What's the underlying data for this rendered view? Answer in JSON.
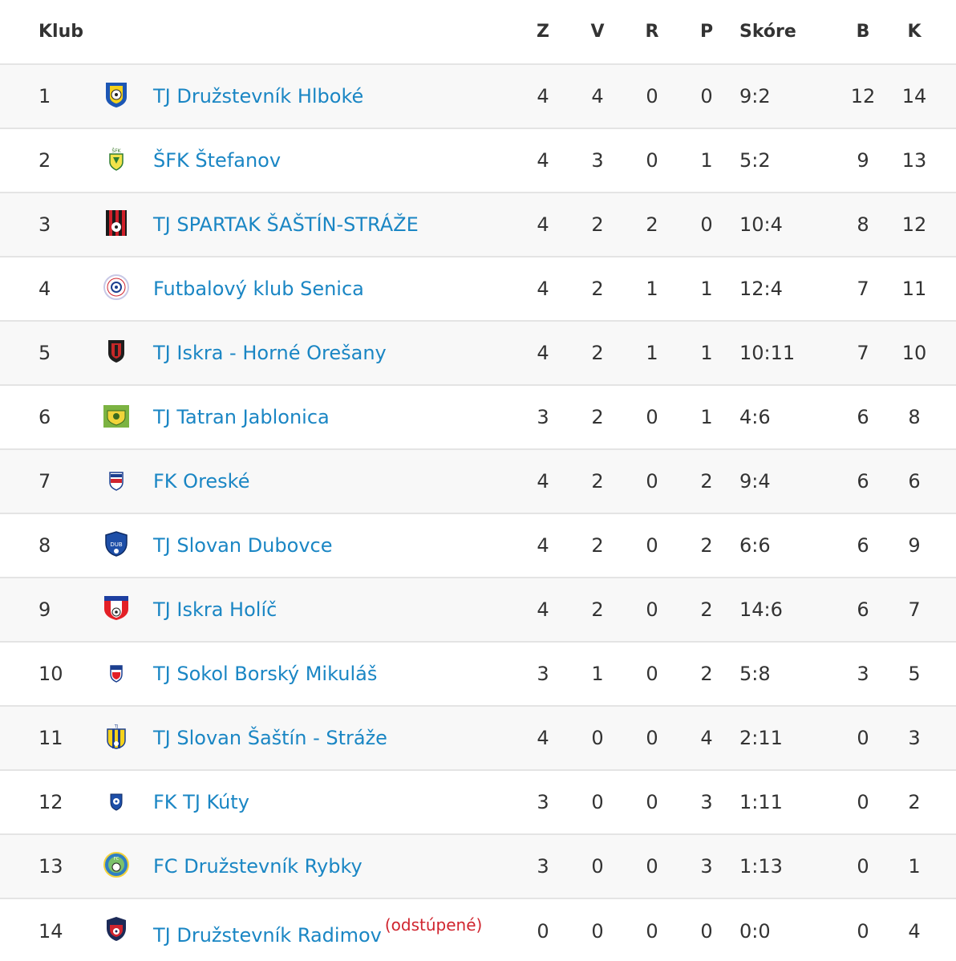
{
  "header": {
    "club": "Klub",
    "z": "Z",
    "v": "V",
    "r": "R",
    "p": "P",
    "score": "Skóre",
    "b": "B",
    "k": "K"
  },
  "colors": {
    "link": "#1a86c4",
    "note": "#d0242e",
    "row_alt": "#f8f8f8",
    "border": "#e4e4e4"
  },
  "rows": [
    {
      "pos": "1",
      "logo": "hlboke-crest-icon",
      "name": "TJ Družstevník Hlboké",
      "z": "4",
      "v": "4",
      "r": "0",
      "p": "0",
      "score": "9:2",
      "b": "12",
      "k": "14"
    },
    {
      "pos": "2",
      "logo": "stefanov-crest-icon",
      "name": "ŠFK Štefanov",
      "z": "4",
      "v": "3",
      "r": "0",
      "p": "1",
      "score": "5:2",
      "b": "9",
      "k": "13"
    },
    {
      "pos": "3",
      "logo": "spartak-crest-icon",
      "name": "TJ SPARTAK ŠAŠTÍN-STRÁŽE",
      "z": "4",
      "v": "2",
      "r": "2",
      "p": "0",
      "score": "10:4",
      "b": "8",
      "k": "12"
    },
    {
      "pos": "4",
      "logo": "senica-crest-icon",
      "name": "Futbalový klub Senica",
      "z": "4",
      "v": "2",
      "r": "1",
      "p": "1",
      "score": "12:4",
      "b": "7",
      "k": "11"
    },
    {
      "pos": "5",
      "logo": "oresany-crest-icon",
      "name": "TJ Iskra - Horné Orešany",
      "z": "4",
      "v": "2",
      "r": "1",
      "p": "1",
      "score": "10:11",
      "b": "7",
      "k": "10"
    },
    {
      "pos": "6",
      "logo": "jablonica-crest-icon",
      "name": "TJ Tatran Jablonica",
      "z": "3",
      "v": "2",
      "r": "0",
      "p": "1",
      "score": "4:6",
      "b": "6",
      "k": "8"
    },
    {
      "pos": "7",
      "logo": "oreske-crest-icon",
      "name": "FK Oreské",
      "z": "4",
      "v": "2",
      "r": "0",
      "p": "2",
      "score": "9:4",
      "b": "6",
      "k": "6"
    },
    {
      "pos": "8",
      "logo": "dubovce-crest-icon",
      "name": "TJ Slovan Dubovce",
      "z": "4",
      "v": "2",
      "r": "0",
      "p": "2",
      "score": "6:6",
      "b": "6",
      "k": "9"
    },
    {
      "pos": "9",
      "logo": "holic-crest-icon",
      "name": "TJ Iskra Holíč",
      "z": "4",
      "v": "2",
      "r": "0",
      "p": "2",
      "score": "14:6",
      "b": "6",
      "k": "7"
    },
    {
      "pos": "10",
      "logo": "borsky-mikulas-crest-icon",
      "name": "TJ Sokol Borský Mikuláš",
      "z": "3",
      "v": "1",
      "r": "0",
      "p": "2",
      "score": "5:8",
      "b": "3",
      "k": "5"
    },
    {
      "pos": "11",
      "logo": "sastin-straze-crest-icon",
      "name": "TJ Slovan Šaštín - Stráže",
      "z": "4",
      "v": "0",
      "r": "0",
      "p": "4",
      "score": "2:11",
      "b": "0",
      "k": "3"
    },
    {
      "pos": "12",
      "logo": "kuty-crest-icon",
      "name": "FK TJ Kúty",
      "z": "3",
      "v": "0",
      "r": "0",
      "p": "3",
      "score": "1:11",
      "b": "0",
      "k": "2"
    },
    {
      "pos": "13",
      "logo": "rybky-crest-icon",
      "name": "FC Družstevník Rybky",
      "z": "3",
      "v": "0",
      "r": "0",
      "p": "3",
      "score": "1:13",
      "b": "0",
      "k": "1"
    },
    {
      "pos": "14",
      "logo": "radimov-crest-icon",
      "name": "TJ Družstevník Radimov",
      "note": "(odstúpené)",
      "z": "0",
      "v": "0",
      "r": "0",
      "p": "0",
      "score": "0:0",
      "b": "0",
      "k": "4"
    }
  ]
}
